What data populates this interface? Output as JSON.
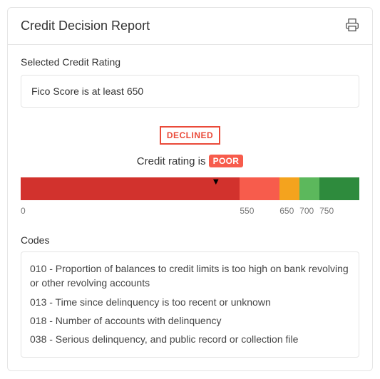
{
  "header": {
    "title": "Credit Decision Report"
  },
  "rating_section": {
    "label": "Selected Credit Rating",
    "value": "Fico Score is at least 650"
  },
  "decision": {
    "status_label": "DECLINED",
    "status_color": "#ea4a39",
    "rating_prefix": "Credit rating is ",
    "rating_value": "POOR",
    "rating_pill_bg": "#f75c4c"
  },
  "gauge": {
    "min": 0,
    "max": 850,
    "pointer_value": 490,
    "segments": [
      {
        "from": 0,
        "to": 550,
        "color": "#d2322d"
      },
      {
        "from": 550,
        "to": 650,
        "color": "#f75c4c"
      },
      {
        "from": 650,
        "to": 700,
        "color": "#f4a31e"
      },
      {
        "from": 700,
        "to": 750,
        "color": "#5cb85c"
      },
      {
        "from": 750,
        "to": 850,
        "color": "#2e8b3d"
      }
    ],
    "ticks": [
      0,
      550,
      650,
      700,
      750
    ]
  },
  "codes": {
    "label": "Codes",
    "items": [
      "010 - Proportion of balances to credit limits is too high on bank revolving or other revolving accounts",
      "013 - Time since delinquency is too recent or unknown",
      "018 - Number of accounts with delinquency",
      "038 - Serious delinquency, and public record or collection file"
    ]
  }
}
